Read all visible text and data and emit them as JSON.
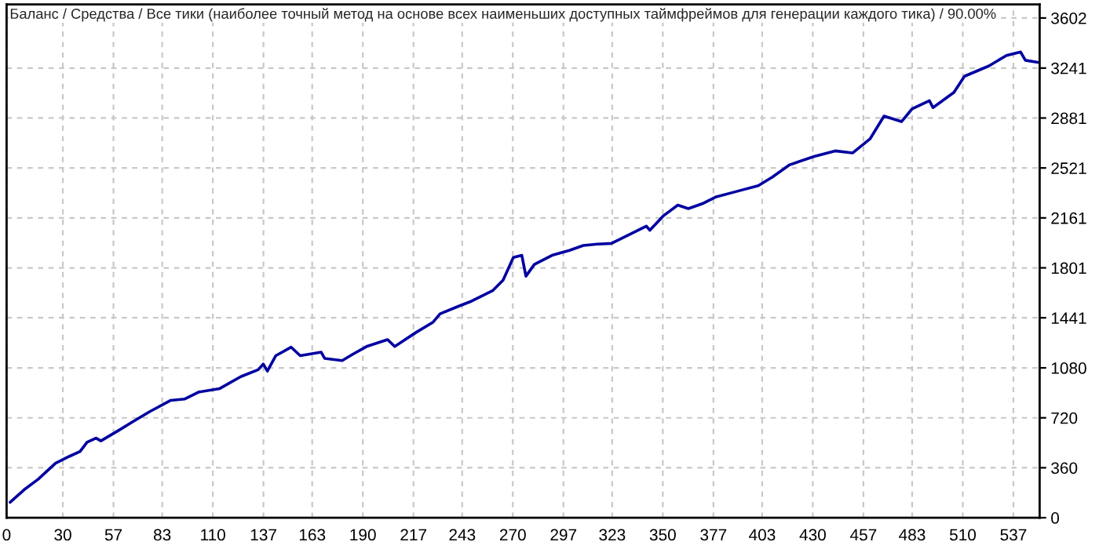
{
  "chart_data": {
    "type": "line",
    "title": "Баланс / Средства / Все тики (наиболее точный метод на основе всех наименьших доступных таймфреймов для генерации каждого тика) / 90.00%",
    "series": [
      {
        "color": "#0000a0",
        "x": [
          1.9,
          9.3,
          16.8,
          26.1,
          33.6,
          39.2,
          42.9,
          47.7,
          50.3,
          59.7,
          67.1,
          76.4,
          87.6,
          95.1,
          102.5,
          113.7,
          124.9,
          134.2,
          136.9,
          139.1,
          143.6,
          151.8,
          156.6,
          167.8,
          169.7,
          179,
          184.6,
          192,
          203.2,
          207,
          218.2,
          227.5,
          231.2,
          240.5,
          248,
          259.2,
          264.8,
          270.3,
          274.8,
          277,
          281.5,
          290.9,
          300.2,
          307.6,
          315.1,
          322.6,
          333.8,
          341.2,
          343.1,
          350.5,
          358,
          363.6,
          371,
          378.5,
          389.7,
          400.9,
          408.3,
          417.7,
          430.7,
          441.9,
          451.2,
          460.5,
          468,
          477.3,
          482.9,
          492.2,
          494.1,
          505.3,
          510.9,
          524,
          533.3,
          540.8,
          543.4,
          550.1
        ],
        "values": [
          111,
          201,
          277,
          393,
          443,
          478,
          544,
          574,
          554,
          629,
          690,
          765,
          846,
          856,
          906,
          931,
          1017,
          1067,
          1108,
          1057,
          1168,
          1229,
          1168,
          1193,
          1148,
          1133,
          1178,
          1234,
          1284,
          1234,
          1334,
          1410,
          1470,
          1521,
          1561,
          1636,
          1712,
          1876,
          1891,
          1741,
          1826,
          1891,
          1927,
          1962,
          1972,
          1977,
          2052,
          2102,
          2072,
          2178,
          2253,
          2228,
          2263,
          2313,
          2353,
          2393,
          2454,
          2544,
          2604,
          2644,
          2629,
          2730,
          2895,
          2855,
          2946,
          3006,
          2956,
          3066,
          3182,
          3257,
          3332,
          3357,
          3297,
          3282
        ]
      }
    ],
    "xlim": [
      0,
      551
    ],
    "ylim": [
      0,
      3700
    ],
    "xticks": [
      0,
      30,
      57,
      83,
      110,
      137,
      163,
      190,
      217,
      243,
      270,
      297,
      323,
      350,
      377,
      403,
      430,
      457,
      483,
      510,
      537
    ],
    "yticks": [
      0,
      360,
      720,
      1080,
      1441,
      1801,
      2161,
      2521,
      2881,
      3241,
      3602
    ],
    "grid": true,
    "line_style": "solid",
    "marker": "none"
  }
}
